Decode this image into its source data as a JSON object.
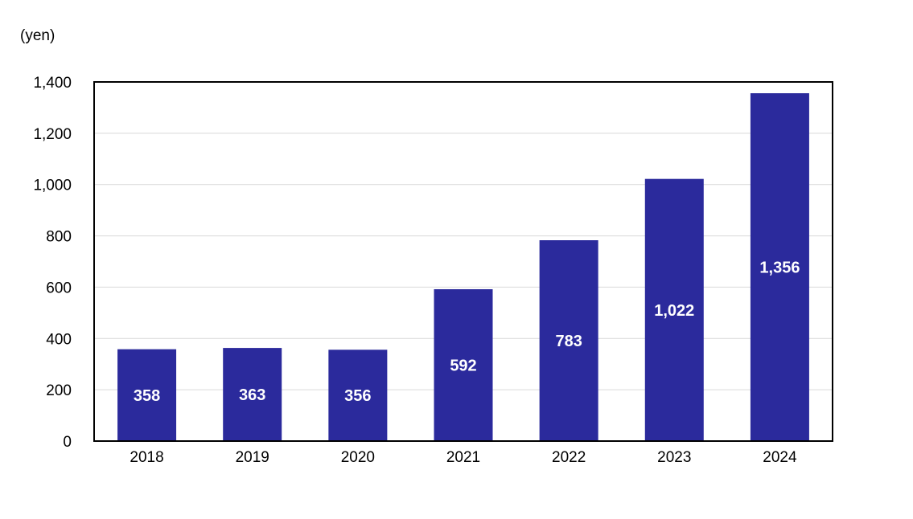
{
  "chart_data": {
    "type": "bar",
    "unit_label": "(yen)",
    "categories": [
      "2018",
      "2019",
      "2020",
      "2021",
      "2022",
      "2023",
      "2024"
    ],
    "values": [
      358,
      363,
      356,
      592,
      783,
      1022,
      1356
    ],
    "value_labels": [
      "358",
      "363",
      "356",
      "592",
      "783",
      "1,022",
      "1,356"
    ],
    "ylim": [
      0,
      1400
    ],
    "yticks": [
      0,
      200,
      400,
      600,
      800,
      1000,
      1200,
      1400
    ],
    "ytick_labels": [
      "0",
      "200",
      "400",
      "600",
      "800",
      "1,000",
      "1,200",
      "1,400"
    ],
    "grid": true,
    "legend": "none",
    "bar_color": "#2b2a9c",
    "grid_color": "#d9d9d9",
    "frame_color": "#000000",
    "label_color": "#ffffff"
  }
}
